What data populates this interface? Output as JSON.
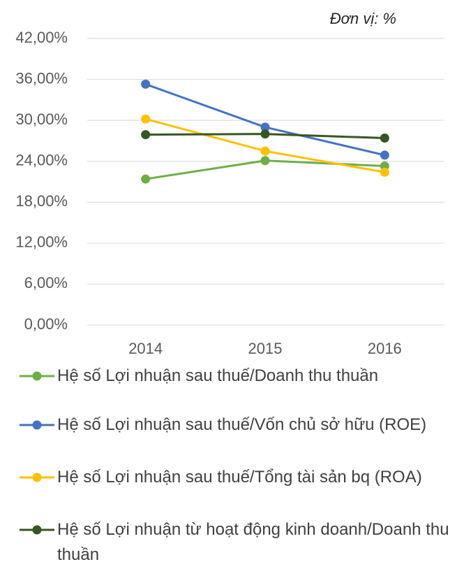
{
  "chart_data": {
    "type": "line",
    "annotation": "Đơn vị: %",
    "categories": [
      "2014",
      "2015",
      "2016"
    ],
    "series": [
      {
        "name": "Hệ số Lợi nhuận sau thuế/Doanh thu  thuần",
        "color": "#70ad47",
        "values": [
          21.4,
          24.1,
          23.3
        ]
      },
      {
        "name": "Hệ số Lợi nhuận sau thuế/Vốn chủ sở hữu (ROE)",
        "color": "#4472c4",
        "values": [
          35.3,
          29.0,
          24.9
        ]
      },
      {
        "name": "Hệ số Lợi nhuận sau thuế/Tổng tài sản bq (ROA)",
        "color": "#ffc000",
        "values": [
          30.2,
          25.5,
          22.4
        ]
      },
      {
        "name": "Hệ số Lợi nhuận từ hoạt động kinh doanh/Doanh thu thuần",
        "color": "#375623",
        "values": [
          27.9,
          28.0,
          27.4
        ]
      }
    ],
    "ylim": [
      0,
      42
    ],
    "yticks": [
      {
        "value": 0,
        "label": "0,00%"
      },
      {
        "value": 6,
        "label": "6,00%"
      },
      {
        "value": 12,
        "label": "12,00%"
      },
      {
        "value": 18,
        "label": "18,00%"
      },
      {
        "value": 24,
        "label": "24,00%"
      },
      {
        "value": 30,
        "label": "30,00%"
      },
      {
        "value": 36,
        "label": "36,00%"
      },
      {
        "value": 42,
        "label": "42,00%"
      }
    ],
    "grid": true,
    "legend": "bottom"
  }
}
